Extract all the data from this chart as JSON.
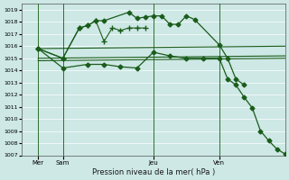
{
  "background_color": "#cde8e5",
  "grid_color": "#b0d8d4",
  "line_color": "#1a5c1a",
  "title": "Pression niveau de la mer( hPa )",
  "ylim": [
    1007,
    1019.5
  ],
  "yticks": [
    1007,
    1008,
    1009,
    1010,
    1011,
    1012,
    1013,
    1014,
    1015,
    1016,
    1017,
    1018,
    1019
  ],
  "xlim": [
    0,
    32
  ],
  "xtick_pos": [
    2,
    5,
    16,
    24
  ],
  "xtick_labels": [
    "Mer",
    "Sam",
    "Jeu",
    "Ven"
  ],
  "vline_pos": [
    2,
    5,
    16,
    24
  ],
  "series": [
    {
      "x": [
        2,
        5,
        7,
        8,
        9,
        10,
        13,
        14,
        15,
        16,
        17,
        18,
        19,
        20,
        21,
        24,
        25,
        26,
        27
      ],
      "y": [
        1015.8,
        1015.0,
        1017.5,
        1017.7,
        1018.1,
        1018.1,
        1018.8,
        1018.3,
        1018.4,
        1018.5,
        1018.5,
        1017.8,
        1017.8,
        1018.5,
        1018.2,
        1016.1,
        1015.0,
        1013.3,
        1012.8
      ],
      "marker": "D",
      "markersize": 2.5,
      "lw": 0.9
    },
    {
      "x": [
        2,
        5,
        7,
        8,
        9,
        10,
        11,
        12,
        13,
        14,
        15
      ],
      "y": [
        1015.8,
        1015.0,
        1017.5,
        1017.7,
        1018.1,
        1016.4,
        1017.5,
        1017.3,
        1017.5,
        1017.5,
        1017.5
      ],
      "marker": "+",
      "markersize": 4,
      "lw": 0.8
    },
    {
      "x": [
        2,
        32
      ],
      "y": [
        1015.8,
        1016.0
      ],
      "marker": null,
      "markersize": 0,
      "lw": 0.8
    },
    {
      "x": [
        2,
        32
      ],
      "y": [
        1015.0,
        1015.2
      ],
      "marker": null,
      "markersize": 0,
      "lw": 0.8
    },
    {
      "x": [
        2,
        32
      ],
      "y": [
        1014.8,
        1015.0
      ],
      "marker": null,
      "markersize": 0,
      "lw": 0.8
    },
    {
      "x": [
        2,
        5,
        8,
        10,
        12,
        14,
        16,
        18,
        20,
        22,
        24,
        25,
        26,
        27,
        28,
        29,
        30,
        31,
        32
      ],
      "y": [
        1015.8,
        1014.2,
        1014.5,
        1014.5,
        1014.3,
        1014.2,
        1015.5,
        1015.2,
        1015.0,
        1015.0,
        1015.0,
        1013.3,
        1012.8,
        1011.8,
        1010.9,
        1009.0,
        1008.2,
        1007.5,
        1007.1
      ],
      "marker": "D",
      "markersize": 2.5,
      "lw": 0.9
    }
  ]
}
